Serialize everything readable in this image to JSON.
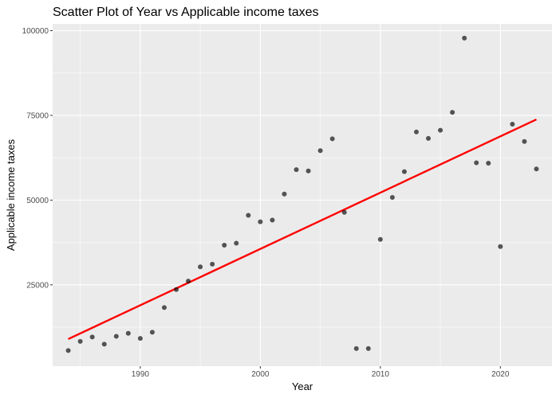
{
  "chart_data": {
    "type": "scatter",
    "title": "Scatter Plot of Year vs Applicable income taxes",
    "xlabel": "Year",
    "ylabel": "Applicable income taxes",
    "xlim": [
      1982.7,
      2024.3
    ],
    "ylim": [
      1000,
      102000
    ],
    "x_ticks": [
      1990,
      2000,
      2010,
      2020
    ],
    "x_tick_labels": [
      "1990",
      "2000",
      "2010",
      "2020"
    ],
    "y_ticks": [
      25000,
      50000,
      75000,
      100000
    ],
    "y_tick_labels": [
      "25000",
      "50000",
      "75000",
      "100000"
    ],
    "grid": true,
    "legend": "none",
    "point_color": "#000000",
    "panel_color": "#ebebeb",
    "trend_color": "#ff0000",
    "series": [
      {
        "x": [
          1984,
          1985,
          1986,
          1987,
          1988,
          1989,
          1990,
          1991,
          1992,
          1993,
          1994,
          1995,
          1996,
          1997,
          1998,
          1999,
          2000,
          2001,
          2002,
          2003,
          2004,
          2005,
          2006,
          2007,
          2008,
          2009,
          2010,
          2011,
          2012,
          2013,
          2014,
          2015,
          2016,
          2017,
          2018,
          2019,
          2020,
          2021,
          2022,
          2023
        ],
        "y": [
          5600,
          8300,
          9600,
          7500,
          9800,
          10700,
          9200,
          11000,
          18300,
          23600,
          26100,
          30300,
          31100,
          36700,
          37300,
          45500,
          43600,
          44100,
          51800,
          59000,
          58600,
          64600,
          68100,
          46400,
          6200,
          6200,
          38400,
          50800,
          58400,
          70100,
          68200,
          70600,
          75900,
          97800,
          61000,
          60900,
          36300,
          72400,
          67300,
          59200
        ]
      }
    ],
    "trendline": {
      "type": "linear",
      "x": [
        1984,
        2023
      ],
      "y": [
        9000,
        73800
      ]
    }
  }
}
